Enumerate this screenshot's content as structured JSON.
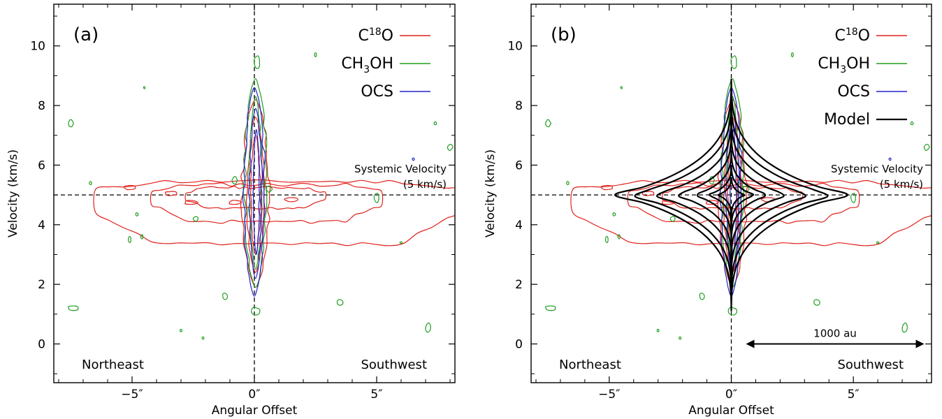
{
  "chart_data": [
    {
      "type": "contour",
      "panel_label": "(a)",
      "xlabel": "Angular Offset",
      "ylabel": "Velocity (km/s)",
      "xlim": [
        -8.2,
        8.2
      ],
      "ylim": [
        -1.3,
        11.4
      ],
      "x_ticks": [
        {
          "value": -5,
          "label": "−5″"
        },
        {
          "value": 0,
          "label": "0″"
        },
        {
          "value": 5,
          "label": "5″"
        }
      ],
      "y_ticks": [
        {
          "value": 0,
          "label": "0"
        },
        {
          "value": 2,
          "label": "2"
        },
        {
          "value": 4,
          "label": "4"
        },
        {
          "value": 6,
          "label": "6"
        },
        {
          "value": 8,
          "label": "8"
        },
        {
          "value": 10,
          "label": "10"
        }
      ],
      "reference_lines": {
        "vertical_x": 0,
        "horizontal_y": 5
      },
      "systemic_velocity": {
        "line1": "Systemic Velocity",
        "line2": "(5 km/s)",
        "value": 5
      },
      "direction_labels": {
        "left": "Northeast",
        "right": "Southwest"
      },
      "legend": {
        "position": "top-right",
        "entries": [
          {
            "main": "C",
            "sup": "18",
            "tail": "O",
            "sub": "",
            "color": "#e0201b"
          },
          {
            "main": "CH",
            "sup": "",
            "tail": "OH",
            "sub": "3",
            "color": "#1f9e1f"
          },
          {
            "main": "OCS",
            "sup": "",
            "tail": "",
            "sub": "",
            "color": "#2222cc"
          }
        ]
      },
      "series": [
        {
          "name": "C18O",
          "color": "#e0201b",
          "extent": {
            "x": [
              -6.5,
              8.2
            ],
            "y": [
              1.9,
              8.2
            ]
          }
        },
        {
          "name": "CH3OH",
          "color": "#1f9e1f",
          "extent": {
            "x": [
              -0.8,
              0.8
            ],
            "y": [
              1.3,
              9.6
            ]
          }
        },
        {
          "name": "OCS",
          "color": "#2222cc",
          "extent": {
            "x": [
              -0.5,
              0.5
            ],
            "y": [
              1.6,
              8.6
            ]
          }
        }
      ],
      "scale_bar": null
    },
    {
      "type": "contour",
      "panel_label": "(b)",
      "xlabel": "Angular Offset",
      "ylabel": "Velocity (km/s)",
      "xlim": [
        -8.2,
        8.2
      ],
      "ylim": [
        -1.3,
        11.4
      ],
      "x_ticks": [
        {
          "value": -5,
          "label": "−5″"
        },
        {
          "value": 0,
          "label": "0″"
        },
        {
          "value": 5,
          "label": "5″"
        }
      ],
      "y_ticks": [
        {
          "value": 0,
          "label": "0"
        },
        {
          "value": 2,
          "label": "2"
        },
        {
          "value": 4,
          "label": "4"
        },
        {
          "value": 6,
          "label": "6"
        },
        {
          "value": 8,
          "label": "8"
        },
        {
          "value": 10,
          "label": "10"
        }
      ],
      "reference_lines": {
        "vertical_x": 0,
        "horizontal_y": 5
      },
      "systemic_velocity": {
        "line1": "Systemic Velocity",
        "line2": "(5 km/s)",
        "value": 5
      },
      "direction_labels": {
        "left": "Northeast",
        "right": "Southwest"
      },
      "legend": {
        "position": "top-right",
        "entries": [
          {
            "main": "C",
            "sup": "18",
            "tail": "O",
            "sub": "",
            "color": "#e0201b"
          },
          {
            "main": "CH",
            "sup": "",
            "tail": "OH",
            "sub": "3",
            "color": "#1f9e1f"
          },
          {
            "main": "OCS",
            "sup": "",
            "tail": "",
            "sub": "",
            "color": "#2222cc"
          },
          {
            "main": "Model",
            "sup": "",
            "tail": "",
            "sub": "",
            "color": "#000000"
          }
        ]
      },
      "series": [
        {
          "name": "C18O",
          "color": "#e0201b",
          "extent": {
            "x": [
              -6.5,
              8.2
            ],
            "y": [
              1.9,
              8.2
            ]
          }
        },
        {
          "name": "CH3OH",
          "color": "#1f9e1f",
          "extent": {
            "x": [
              -0.8,
              0.8
            ],
            "y": [
              1.3,
              9.6
            ]
          }
        },
        {
          "name": "OCS",
          "color": "#2222cc",
          "extent": {
            "x": [
              -0.5,
              0.5
            ],
            "y": [
              1.6,
              8.6
            ]
          }
        },
        {
          "name": "Model",
          "color": "#000000",
          "extent": {
            "x": [
              -4.1,
              4.1
            ],
            "y": [
              1.0,
              8.9
            ]
          }
        }
      ],
      "scale_bar": {
        "label": "1000 au",
        "x_start": 0.6,
        "x_end": 7.9,
        "y": 0
      }
    }
  ]
}
